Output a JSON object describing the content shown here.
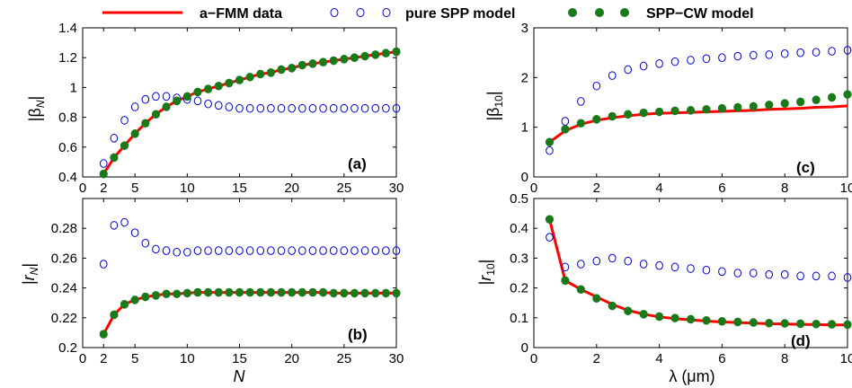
{
  "legend": {
    "fmm": "a−FMM data",
    "pure": "pure SPP model",
    "cw": "SPP−CW model"
  },
  "colors": {
    "fmm": "#ff0000",
    "pure": "#0000cc",
    "cw": "#1a7a1a"
  },
  "chart_data": [
    {
      "type": "scatter",
      "panel": "(a)",
      "ylabel": "|β_N|",
      "xlabel": "",
      "xlim": [
        0,
        30
      ],
      "ylim": [
        0.4,
        1.4
      ],
      "xticks": [
        0,
        2,
        5,
        10,
        15,
        20,
        25,
        30
      ],
      "yticks": [
        0.4,
        0.6,
        0.8,
        1.0,
        1.2,
        1.4
      ],
      "ytick_labels": [
        "0.4",
        "0.6",
        "0.8",
        "1",
        "1.2",
        "1.4"
      ],
      "x": [
        2,
        3,
        4,
        5,
        6,
        7,
        8,
        9,
        10,
        11,
        12,
        13,
        14,
        15,
        16,
        17,
        18,
        19,
        20,
        21,
        22,
        23,
        24,
        25,
        26,
        27,
        28,
        29,
        30
      ],
      "series": [
        {
          "name": "a−FMM data",
          "values": [
            0.42,
            0.53,
            0.61,
            0.69,
            0.76,
            0.82,
            0.87,
            0.91,
            0.94,
            0.97,
            0.99,
            1.01,
            1.03,
            1.05,
            1.07,
            1.09,
            1.1,
            1.12,
            1.13,
            1.15,
            1.16,
            1.17,
            1.18,
            1.19,
            1.2,
            1.21,
            1.22,
            1.23,
            1.24
          ]
        },
        {
          "name": "pure SPP model",
          "values": [
            0.49,
            0.66,
            0.78,
            0.87,
            0.92,
            0.94,
            0.94,
            0.93,
            0.92,
            0.91,
            0.89,
            0.88,
            0.87,
            0.86,
            0.86,
            0.86,
            0.86,
            0.86,
            0.86,
            0.86,
            0.86,
            0.86,
            0.86,
            0.86,
            0.86,
            0.86,
            0.86,
            0.86,
            0.86
          ]
        },
        {
          "name": "SPP−CW model",
          "values": [
            0.42,
            0.53,
            0.61,
            0.69,
            0.76,
            0.82,
            0.87,
            0.91,
            0.94,
            0.97,
            0.99,
            1.01,
            1.03,
            1.05,
            1.07,
            1.09,
            1.1,
            1.12,
            1.13,
            1.15,
            1.16,
            1.17,
            1.18,
            1.19,
            1.2,
            1.21,
            1.22,
            1.23,
            1.24
          ]
        }
      ]
    },
    {
      "type": "scatter",
      "panel": "(b)",
      "ylabel": "|r_N|",
      "xlabel": "N",
      "xlim": [
        0,
        30
      ],
      "ylim": [
        0.2,
        0.3
      ],
      "xticks": [
        0,
        2,
        5,
        10,
        15,
        20,
        25,
        30
      ],
      "yticks": [
        0.2,
        0.22,
        0.24,
        0.26,
        0.28
      ],
      "ytick_labels": [
        "0.2",
        "0.22",
        "0.24",
        "0.26",
        "0.28"
      ],
      "x": [
        2,
        3,
        4,
        5,
        6,
        7,
        8,
        9,
        10,
        11,
        12,
        13,
        14,
        15,
        16,
        17,
        18,
        19,
        20,
        21,
        22,
        23,
        24,
        25,
        26,
        27,
        28,
        29,
        30
      ],
      "series": [
        {
          "name": "a−FMM data",
          "values": [
            0.209,
            0.222,
            0.229,
            0.232,
            0.234,
            0.235,
            0.236,
            0.236,
            0.2365,
            0.237,
            0.237,
            0.237,
            0.237,
            0.237,
            0.237,
            0.237,
            0.237,
            0.237,
            0.237,
            0.237,
            0.237,
            0.237,
            0.2365,
            0.2365,
            0.2365,
            0.2365,
            0.2365,
            0.2365,
            0.2365
          ]
        },
        {
          "name": "pure SPP model",
          "values": [
            0.256,
            0.282,
            0.284,
            0.277,
            0.27,
            0.266,
            0.265,
            0.264,
            0.264,
            0.265,
            0.265,
            0.265,
            0.265,
            0.265,
            0.265,
            0.265,
            0.265,
            0.265,
            0.265,
            0.265,
            0.265,
            0.265,
            0.265,
            0.265,
            0.265,
            0.265,
            0.265,
            0.265,
            0.265
          ]
        },
        {
          "name": "SPP−CW model",
          "values": [
            0.209,
            0.222,
            0.229,
            0.232,
            0.234,
            0.235,
            0.236,
            0.236,
            0.2365,
            0.237,
            0.237,
            0.237,
            0.237,
            0.237,
            0.237,
            0.237,
            0.237,
            0.237,
            0.237,
            0.237,
            0.237,
            0.237,
            0.2365,
            0.2365,
            0.2365,
            0.2365,
            0.2365,
            0.2365,
            0.2365
          ]
        }
      ]
    },
    {
      "type": "scatter",
      "panel": "(c)",
      "ylabel": "|β_10|",
      "xlabel": "",
      "xlim": [
        0,
        10
      ],
      "ylim": [
        0,
        3
      ],
      "xticks": [
        0,
        2,
        4,
        6,
        8,
        10
      ],
      "yticks": [
        0,
        1,
        2,
        3
      ],
      "ytick_labels": [
        "0",
        "1",
        "2",
        "3"
      ],
      "x": [
        0.5,
        1,
        1.5,
        2,
        2.5,
        3,
        3.5,
        4,
        4.5,
        5,
        5.5,
        6,
        6.5,
        7,
        7.5,
        8,
        8.5,
        9,
        9.5,
        10
      ],
      "series": [
        {
          "name": "a−FMM data",
          "values": [
            0.7,
            0.93,
            1.06,
            1.14,
            1.19,
            1.23,
            1.26,
            1.28,
            1.29,
            1.3,
            1.31,
            1.32,
            1.33,
            1.34,
            1.36,
            1.37,
            1.38,
            1.4,
            1.41,
            1.43
          ]
        },
        {
          "name": "pure SPP model",
          "values": [
            0.53,
            1.12,
            1.52,
            1.83,
            2.04,
            2.16,
            2.23,
            2.28,
            2.32,
            2.35,
            2.38,
            2.4,
            2.43,
            2.45,
            2.46,
            2.48,
            2.5,
            2.51,
            2.53,
            2.55
          ]
        },
        {
          "name": "SPP−CW model",
          "values": [
            0.7,
            0.96,
            1.08,
            1.16,
            1.22,
            1.26,
            1.29,
            1.31,
            1.33,
            1.34,
            1.36,
            1.38,
            1.4,
            1.42,
            1.45,
            1.48,
            1.51,
            1.55,
            1.6,
            1.66
          ]
        }
      ]
    },
    {
      "type": "scatter",
      "panel": "(d)",
      "ylabel": "|r_10|",
      "xlabel": "λ (μm)",
      "xlim": [
        0,
        10
      ],
      "ylim": [
        0,
        0.5
      ],
      "xticks": [
        0,
        2,
        4,
        6,
        8,
        10
      ],
      "yticks": [
        0,
        0.1,
        0.2,
        0.3,
        0.4,
        0.5
      ],
      "ytick_labels": [
        "0",
        "0.1",
        "0.2",
        "0.3",
        "0.4",
        "0.5"
      ],
      "x": [
        0.5,
        1,
        1.5,
        2,
        2.5,
        3,
        3.5,
        4,
        4.5,
        5,
        5.5,
        6,
        6.5,
        7,
        7.5,
        8,
        8.5,
        9,
        9.5,
        10
      ],
      "series": [
        {
          "name": "a−FMM data",
          "values": [
            0.43,
            0.225,
            0.195,
            0.17,
            0.145,
            0.125,
            0.112,
            0.103,
            0.097,
            0.093,
            0.089,
            0.086,
            0.084,
            0.082,
            0.08,
            0.079,
            0.078,
            0.077,
            0.076,
            0.076
          ]
        },
        {
          "name": "pure SPP model",
          "values": [
            0.37,
            0.27,
            0.28,
            0.29,
            0.3,
            0.29,
            0.28,
            0.275,
            0.27,
            0.265,
            0.26,
            0.255,
            0.25,
            0.25,
            0.245,
            0.245,
            0.24,
            0.24,
            0.24,
            0.235
          ]
        },
        {
          "name": "SPP−CW model",
          "values": [
            0.43,
            0.225,
            0.195,
            0.165,
            0.14,
            0.123,
            0.112,
            0.104,
            0.099,
            0.095,
            0.091,
            0.088,
            0.086,
            0.084,
            0.082,
            0.081,
            0.08,
            0.079,
            0.078,
            0.077
          ]
        }
      ]
    }
  ]
}
